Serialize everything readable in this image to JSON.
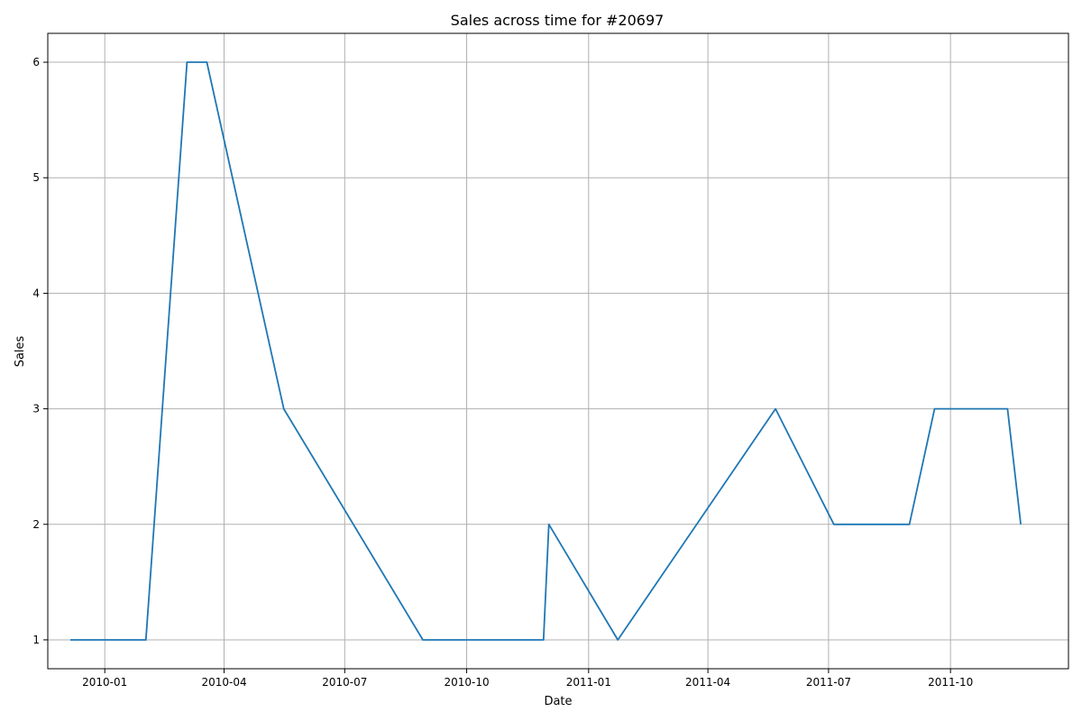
{
  "chart_data": {
    "type": "line",
    "title": "Sales across time for #20697",
    "xlabel": "Date",
    "ylabel": "Sales",
    "x_ticks": [
      "2010-01",
      "2010-04",
      "2010-07",
      "2010-10",
      "2011-01",
      "2011-04",
      "2011-07",
      "2011-10"
    ],
    "y_ticks": [
      1,
      2,
      3,
      4,
      5,
      6
    ],
    "xlim": [
      "2009-11-19",
      "2011-12-29"
    ],
    "ylim": [
      0.75,
      6.25
    ],
    "grid": true,
    "series": [
      {
        "color": "#1f77b4",
        "points": [
          {
            "x": "2009-12-06",
            "y": 1
          },
          {
            "x": "2010-02-01",
            "y": 1
          },
          {
            "x": "2010-03-04",
            "y": 6
          },
          {
            "x": "2010-03-19",
            "y": 6
          },
          {
            "x": "2010-05-16",
            "y": 3
          },
          {
            "x": "2010-08-29",
            "y": 1
          },
          {
            "x": "2010-11-28",
            "y": 1
          },
          {
            "x": "2010-12-02",
            "y": 2
          },
          {
            "x": "2011-01-23",
            "y": 1
          },
          {
            "x": "2011-05-22",
            "y": 3
          },
          {
            "x": "2011-07-05",
            "y": 2
          },
          {
            "x": "2011-08-31",
            "y": 2
          },
          {
            "x": "2011-09-19",
            "y": 3
          },
          {
            "x": "2011-11-13",
            "y": 3
          },
          {
            "x": "2011-11-23",
            "y": 2
          }
        ]
      }
    ]
  }
}
